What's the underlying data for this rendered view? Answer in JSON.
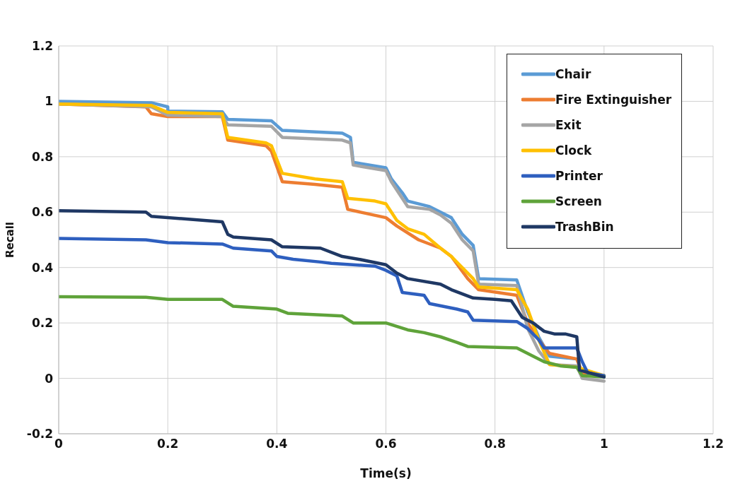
{
  "chart_data": {
    "type": "line",
    "xlabel": "Time(s)",
    "ylabel": "Recall",
    "xlim": [
      0,
      1.2
    ],
    "xticks": [
      0,
      0.2,
      0.4,
      0.6,
      0.8,
      1,
      1.2
    ],
    "ylim": [
      -0.2,
      1.2
    ],
    "yticks": [
      -0.2,
      0,
      0.2,
      0.4,
      0.6,
      0.8,
      1,
      1.2
    ],
    "grid": true,
    "legend": "top right",
    "marker": "none",
    "line_style": "solid",
    "series": [
      {
        "name": "Chair",
        "color": "#5b9bd5",
        "x": [
          0,
          0.17,
          0.2,
          0.2,
          0.3,
          0.31,
          0.39,
          0.41,
          0.52,
          0.535,
          0.54,
          0.6,
          0.61,
          0.63,
          0.64,
          0.68,
          0.7,
          0.72,
          0.74,
          0.76,
          0.77,
          0.84,
          0.86,
          0.88,
          0.9,
          0.95,
          0.96,
          1
        ],
        "values": [
          1,
          0.995,
          0.98,
          0.965,
          0.962,
          0.935,
          0.93,
          0.895,
          0.885,
          0.87,
          0.78,
          0.76,
          0.72,
          0.67,
          0.64,
          0.62,
          0.6,
          0.58,
          0.52,
          0.48,
          0.36,
          0.355,
          0.24,
          0.15,
          0.08,
          0.07,
          0.02,
          0.01
        ]
      },
      {
        "name": "Fire Extinguisher",
        "color": "#ed7d31",
        "x": [
          0,
          0.16,
          0.17,
          0.2,
          0.3,
          0.31,
          0.38,
          0.39,
          0.41,
          0.47,
          0.52,
          0.53,
          0.6,
          0.62,
          0.66,
          0.7,
          0.72,
          0.75,
          0.77,
          0.84,
          0.86,
          0.88,
          0.9,
          0.95,
          0.96,
          1
        ],
        "values": [
          0.99,
          0.98,
          0.955,
          0.945,
          0.945,
          0.86,
          0.84,
          0.82,
          0.71,
          0.7,
          0.69,
          0.61,
          0.58,
          0.55,
          0.5,
          0.47,
          0.44,
          0.36,
          0.32,
          0.3,
          0.2,
          0.14,
          0.09,
          0.07,
          0.02,
          0.01
        ]
      },
      {
        "name": "Exit",
        "color": "#a5a5a5",
        "x": [
          0,
          0.17,
          0.2,
          0.3,
          0.31,
          0.39,
          0.41,
          0.52,
          0.535,
          0.54,
          0.6,
          0.61,
          0.63,
          0.64,
          0.68,
          0.7,
          0.72,
          0.74,
          0.76,
          0.77,
          0.84,
          0.86,
          0.88,
          0.9,
          0.95,
          0.96,
          1
        ],
        "values": [
          0.99,
          0.98,
          0.95,
          0.945,
          0.915,
          0.91,
          0.87,
          0.86,
          0.85,
          0.77,
          0.75,
          0.71,
          0.65,
          0.62,
          0.61,
          0.59,
          0.56,
          0.5,
          0.46,
          0.34,
          0.335,
          0.18,
          0.1,
          0.05,
          0.045,
          0,
          -0.01
        ]
      },
      {
        "name": "Clock",
        "color": "#ffc000",
        "x": [
          0,
          0.17,
          0.2,
          0.3,
          0.31,
          0.38,
          0.39,
          0.41,
          0.47,
          0.52,
          0.53,
          0.58,
          0.6,
          0.62,
          0.64,
          0.67,
          0.7,
          0.72,
          0.74,
          0.76,
          0.77,
          0.84,
          0.86,
          0.88,
          0.9,
          0.95,
          1
        ],
        "values": [
          0.99,
          0.985,
          0.96,
          0.955,
          0.87,
          0.85,
          0.84,
          0.74,
          0.72,
          0.71,
          0.65,
          0.64,
          0.63,
          0.57,
          0.54,
          0.52,
          0.47,
          0.44,
          0.4,
          0.36,
          0.33,
          0.32,
          0.25,
          0.14,
          0.05,
          0.04,
          0.01
        ]
      },
      {
        "name": "Printer",
        "color": "#2e5fbf",
        "x": [
          0,
          0.16,
          0.2,
          0.3,
          0.32,
          0.39,
          0.4,
          0.43,
          0.48,
          0.5,
          0.58,
          0.6,
          0.62,
          0.63,
          0.67,
          0.68,
          0.73,
          0.75,
          0.76,
          0.84,
          0.86,
          0.88,
          0.89,
          0.95,
          0.96,
          0.97,
          1
        ],
        "values": [
          0.505,
          0.5,
          0.49,
          0.485,
          0.47,
          0.46,
          0.44,
          0.43,
          0.42,
          0.415,
          0.405,
          0.39,
          0.37,
          0.31,
          0.3,
          0.27,
          0.25,
          0.24,
          0.21,
          0.205,
          0.18,
          0.14,
          0.11,
          0.11,
          0.06,
          0.02,
          0.01
        ]
      },
      {
        "name": "Screen",
        "color": "#5fa33a",
        "x": [
          0,
          0.16,
          0.2,
          0.3,
          0.32,
          0.4,
          0.42,
          0.52,
          0.54,
          0.6,
          0.64,
          0.67,
          0.7,
          0.73,
          0.75,
          0.84,
          0.87,
          0.89,
          0.92,
          0.95,
          0.96,
          1
        ],
        "values": [
          0.295,
          0.293,
          0.285,
          0.285,
          0.26,
          0.25,
          0.235,
          0.225,
          0.2,
          0.2,
          0.175,
          0.165,
          0.15,
          0.13,
          0.115,
          0.11,
          0.08,
          0.06,
          0.045,
          0.04,
          0.01,
          0.005
        ]
      },
      {
        "name": "TrashBin",
        "color": "#1f3864",
        "x": [
          0,
          0.16,
          0.17,
          0.3,
          0.31,
          0.32,
          0.39,
          0.41,
          0.48,
          0.52,
          0.55,
          0.6,
          0.62,
          0.64,
          0.7,
          0.72,
          0.76,
          0.8,
          0.83,
          0.85,
          0.87,
          0.89,
          0.91,
          0.93,
          0.95,
          0.955,
          1
        ],
        "values": [
          0.605,
          0.6,
          0.585,
          0.565,
          0.52,
          0.51,
          0.5,
          0.475,
          0.47,
          0.44,
          0.43,
          0.41,
          0.38,
          0.36,
          0.34,
          0.32,
          0.29,
          0.285,
          0.28,
          0.22,
          0.2,
          0.17,
          0.16,
          0.16,
          0.15,
          0.03,
          0.005
        ]
      }
    ]
  }
}
